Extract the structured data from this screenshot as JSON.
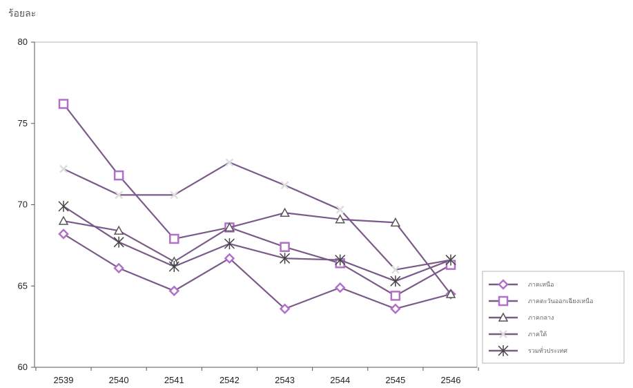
{
  "chart_data": {
    "type": "line",
    "title": "",
    "ylabel": "ร้อยละ",
    "xlabel": "",
    "categories": [
      "2539",
      "2540",
      "2541",
      "2542",
      "2543",
      "2544",
      "2545",
      "2546"
    ],
    "ylim": [
      60,
      80
    ],
    "yticks": [
      60,
      65,
      70,
      75,
      80
    ],
    "grid": false,
    "legend_position": "bottom-right",
    "series": [
      {
        "name": "ภาคเหนือ",
        "marker": "diamond",
        "color": "#7a5a88",
        "marker_color": "#b070c8",
        "values": [
          68.2,
          66.1,
          64.7,
          66.7,
          63.6,
          64.9,
          63.6,
          64.5
        ]
      },
      {
        "name": "ภาคตะวันออกเฉียงเหนือ",
        "marker": "square",
        "color": "#7a5a88",
        "marker_color": "#b070c8",
        "values": [
          76.2,
          71.8,
          67.9,
          68.6,
          67.4,
          66.4,
          64.4,
          66.3
        ]
      },
      {
        "name": "ภาคกลาง",
        "marker": "triangle",
        "color": "#7a5a88",
        "marker_color": "#555555",
        "values": [
          69.0,
          68.4,
          66.5,
          68.6,
          69.5,
          69.1,
          68.9,
          64.5
        ]
      },
      {
        "name": "ภาคใต้",
        "marker": "cross",
        "color": "#7a5a88",
        "marker_color": "#dddddd",
        "values": [
          72.2,
          70.6,
          70.6,
          72.6,
          71.2,
          69.7,
          66.0,
          66.6
        ]
      },
      {
        "name": "รวมทั่วประเทศ",
        "marker": "star",
        "color": "#7a5a88",
        "marker_color": "#444444",
        "values": [
          69.9,
          67.7,
          66.2,
          67.6,
          66.7,
          66.6,
          65.3,
          66.6
        ]
      }
    ]
  }
}
